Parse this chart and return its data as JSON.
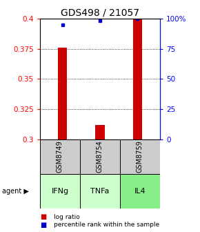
{
  "title": "GDS498 / 21057",
  "samples": [
    "GSM8749",
    "GSM8754",
    "GSM8759"
  ],
  "agents": [
    "IFNg",
    "TNFa",
    "IL4"
  ],
  "log_ratio": [
    0.376,
    0.312,
    0.4
  ],
  "percentile_rank": [
    95,
    98,
    100
  ],
  "ylim": [
    0.3,
    0.4
  ],
  "yticks": [
    0.3,
    0.325,
    0.35,
    0.375,
    0.4
  ],
  "ytick_labels": [
    "0.3",
    "0.325",
    "0.35",
    "0.375",
    "0.4"
  ],
  "y2ticks": [
    0,
    25,
    50,
    75,
    100
  ],
  "y2tick_labels": [
    "0",
    "25",
    "50",
    "75",
    "100%"
  ],
  "bar_color": "#cc0000",
  "dot_color": "#0000cc",
  "sample_box_color": "#cccccc",
  "agent_box_colors": [
    "#ccffcc",
    "#ccffcc",
    "#88ee88"
  ],
  "bar_width": 0.25,
  "agent_label_fontsize": 8,
  "sample_label_fontsize": 7,
  "title_fontsize": 10,
  "legend_fontsize": 6.5
}
